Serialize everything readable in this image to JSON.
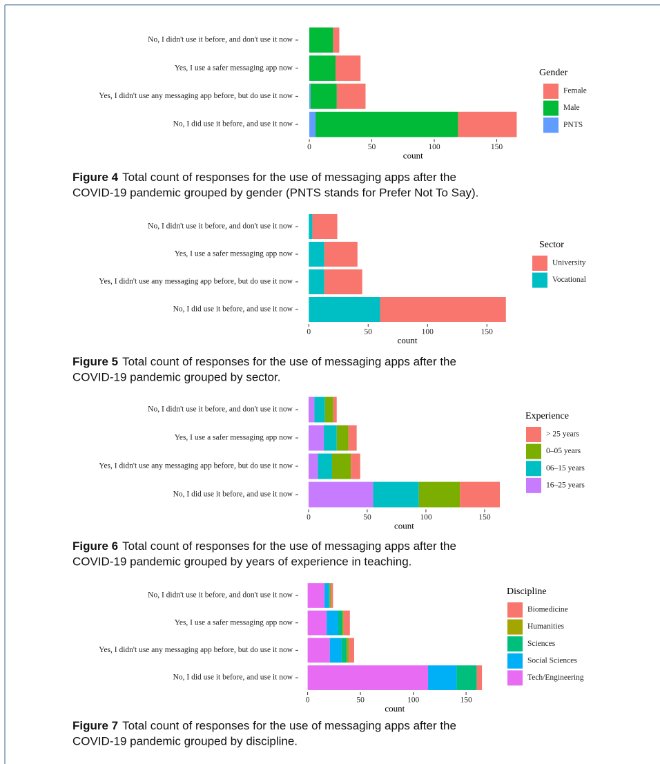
{
  "chart_data": [
    {
      "type": "stacked-bar",
      "categories": [
        "No, I didn't use it before, and don't use it now",
        "Yes, I use a safer messaging app now",
        "Yes, I didn't use any messaging app before, but do use it now",
        "No, I did use it before, and use it now"
      ],
      "legend_title": "Gender",
      "series": [
        {
          "name": "Female",
          "color": "#F8766D",
          "values": [
            5,
            20,
            23,
            47
          ]
        },
        {
          "name": "Male",
          "color": "#00BA38",
          "values": [
            19,
            21,
            21,
            114
          ]
        },
        {
          "name": "PNTS",
          "color": "#619CFF",
          "values": [
            0,
            0,
            1,
            5
          ]
        }
      ],
      "xlim": [
        -8.3,
        174.3
      ],
      "xticks": [
        0,
        50,
        100,
        150
      ],
      "xlabel": "count",
      "caption": {
        "label": "Figure 4",
        "lines": [
          "Total count of responses for the use of messaging apps after the",
          "COVID-19 pandemic grouped by gender (PNTS stands for Prefer Not To Say)."
        ]
      }
    },
    {
      "type": "stacked-bar",
      "categories": [
        "No, I didn't use it before, and don't use it now",
        "Yes, I use a safer messaging app now",
        "Yes, I didn't use any messaging app before, but do use it now",
        "No, I did use it before, and use it now"
      ],
      "legend_title": "Sector",
      "series": [
        {
          "name": "University",
          "color": "#F8766D",
          "values": [
            21,
            28,
            32,
            106
          ]
        },
        {
          "name": "Vocational",
          "color": "#00BFC4",
          "values": [
            3,
            13,
            13,
            60
          ]
        }
      ],
      "xlim": [
        -8.3,
        174.3
      ],
      "xticks": [
        0,
        50,
        100,
        150
      ],
      "xlabel": "count",
      "caption": {
        "label": "Figure 5",
        "lines": [
          "Total count of responses for the use of messaging apps after the",
          "COVID-19 pandemic grouped by sector."
        ]
      }
    },
    {
      "type": "stacked-bar",
      "categories": [
        "No, I didn't use it before, and don't use it now",
        "Yes, I use a safer messaging app now",
        "Yes, I didn't use any messaging app before, but do use it now",
        "No, I did use it before, and use it now"
      ],
      "legend_title": "Experience",
      "series": [
        {
          "name": "> 25 years",
          "color": "#F8766D",
          "values": [
            3,
            7,
            8,
            34
          ]
        },
        {
          "name": "0–05 years",
          "color": "#7CAE00",
          "values": [
            7,
            10,
            16,
            35
          ]
        },
        {
          "name": "06–15 years",
          "color": "#00BFC4",
          "values": [
            9,
            11,
            12,
            39
          ]
        },
        {
          "name": "16–25 years",
          "color": "#C77CFF",
          "values": [
            5,
            13,
            8,
            55
          ]
        }
      ],
      "xlim": [
        -8.2,
        171.2
      ],
      "xticks": [
        0,
        50,
        100,
        150
      ],
      "xlabel": "count",
      "caption": {
        "label": "Figure 6",
        "lines": [
          "Total count of responses for the use of messaging apps after the",
          "COVID-19 pandemic grouped by years of experience in teaching."
        ]
      }
    },
    {
      "type": "stacked-bar",
      "categories": [
        "No, I didn't use it before, and don't use it now",
        "Yes, I use a safer messaging app now",
        "Yes, I didn't use any messaging app before, but do use it now",
        "No, I did use it before, and use it now"
      ],
      "legend_title": "Discipline",
      "series": [
        {
          "name": "Biomedicine",
          "color": "#F8766D",
          "values": [
            2,
            6,
            5,
            5
          ]
        },
        {
          "name": "Humanities",
          "color": "#A3A500",
          "values": [
            1,
            1,
            2,
            0
          ]
        },
        {
          "name": "Sciences",
          "color": "#00BF7D",
          "values": [
            1,
            4,
            5,
            19
          ]
        },
        {
          "name": "Social Sciences",
          "color": "#00B0F6",
          "values": [
            4,
            11,
            11,
            27
          ]
        },
        {
          "name": "Tech/Engineering",
          "color": "#E76BF3",
          "values": [
            16,
            18,
            21,
            114
          ]
        }
      ],
      "xlim": [
        -8.25,
        173.25
      ],
      "xticks": [
        0,
        50,
        100,
        150
      ],
      "xlabel": "count",
      "caption": {
        "label": "Figure 7",
        "lines": [
          "Total count of responses for the use of messaging apps after the",
          "COVID-19 pandemic grouped by discipline."
        ]
      }
    }
  ]
}
